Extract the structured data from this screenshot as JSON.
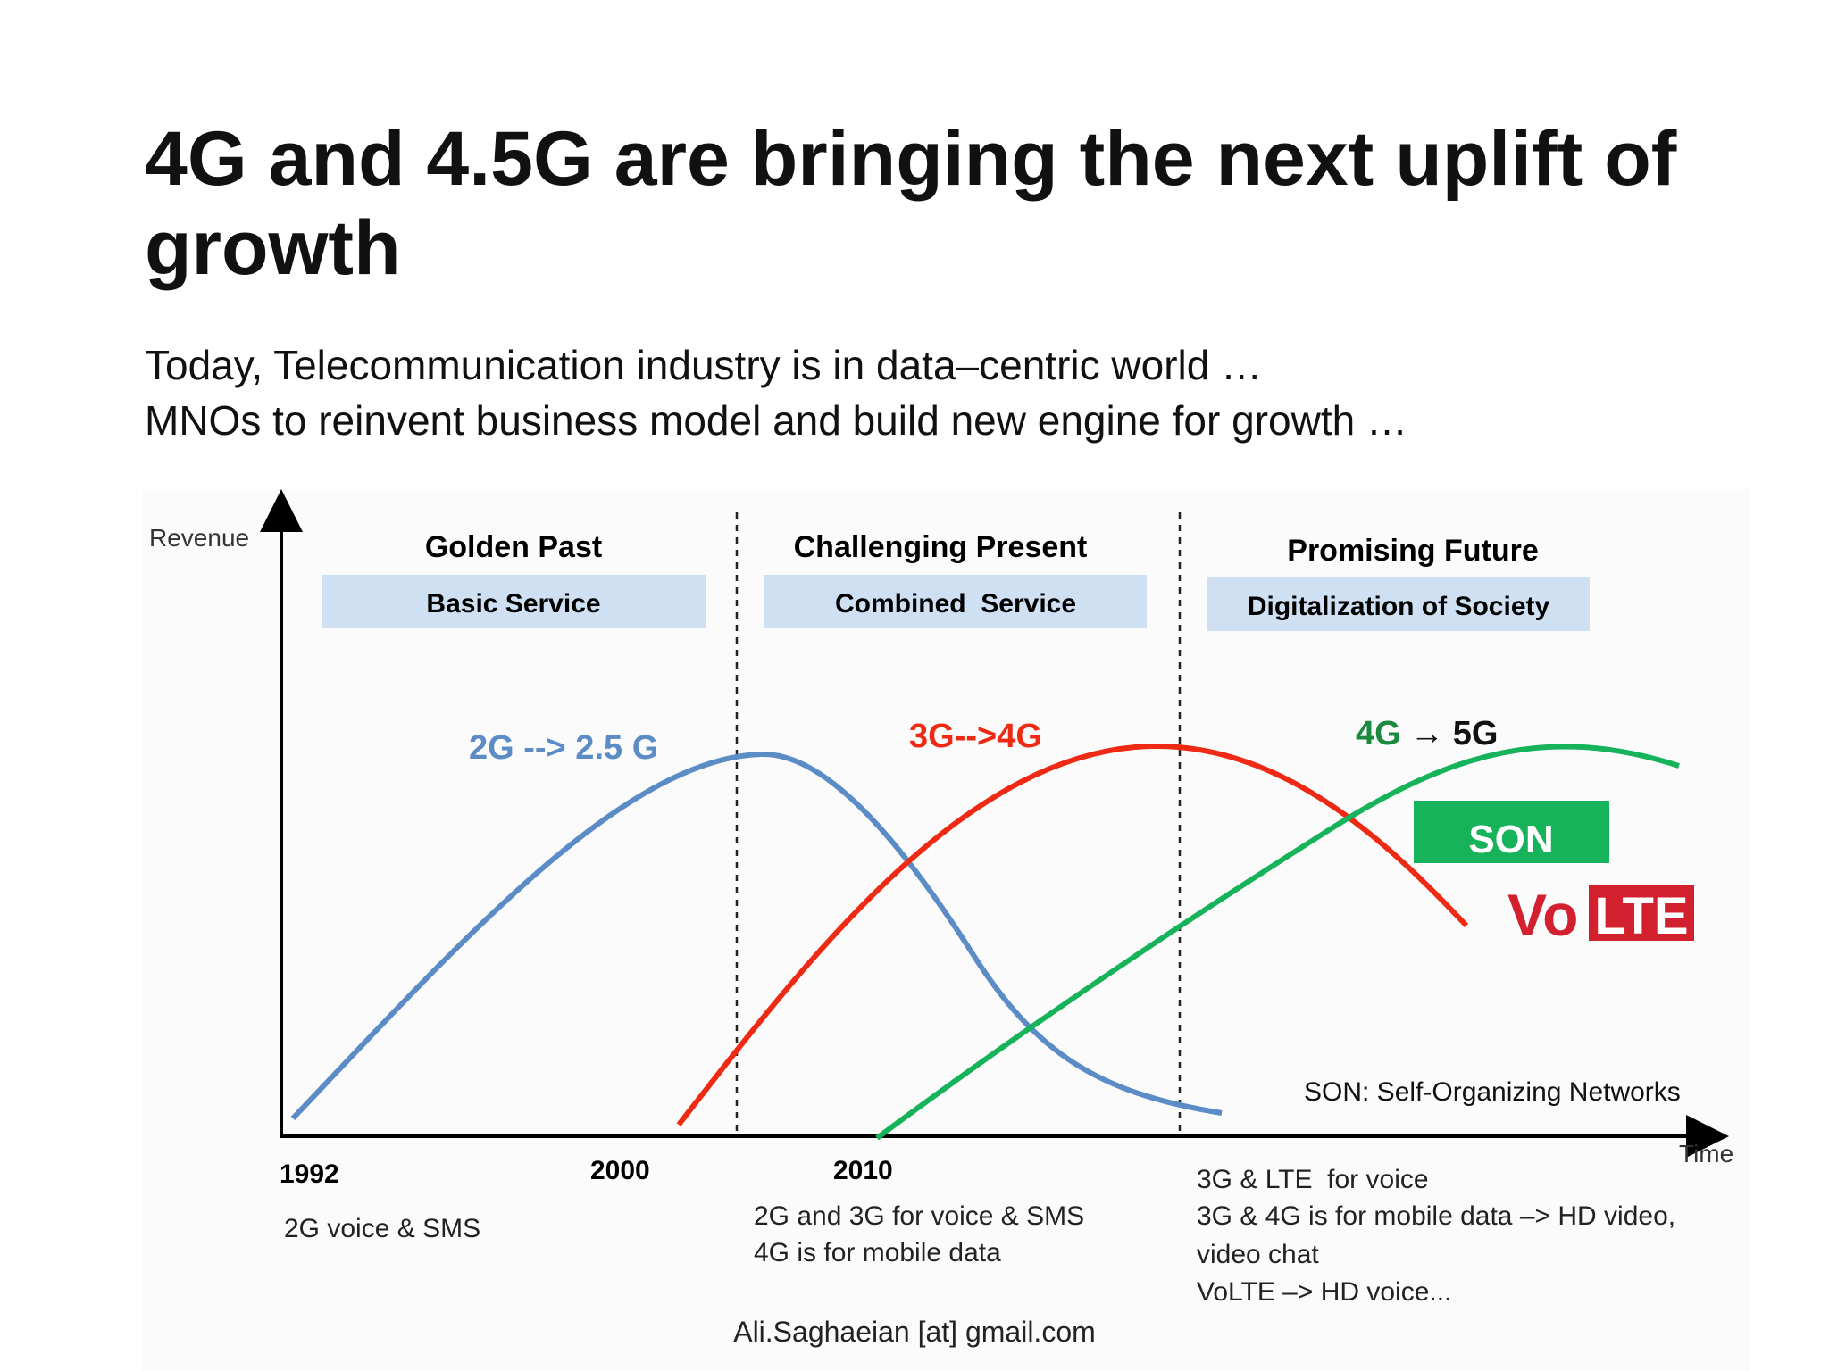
{
  "slide": {
    "title": "4G and 4.5G are bringing the next uplift of growth",
    "subtitle_lines": [
      "Today, Telecommunication industry is in data–centric world …",
      "MNOs to reinvent business model and build new engine for growth …"
    ],
    "footer": "Ali.Saghaeian [at] gmail.com"
  },
  "diagram": {
    "axis": {
      "y_label": "Revenue",
      "x_label": "Time"
    },
    "eras": [
      {
        "title": "Golden Past",
        "band": "Basic Service"
      },
      {
        "title": "Challenging Present",
        "band": "Combined  Service"
      },
      {
        "title": "Promising Future",
        "band": "Digitalization of Society"
      }
    ],
    "curves": [
      {
        "label": "2G --> 2.5 G",
        "color": "#5b8cc6"
      },
      {
        "label": "3G-->4G",
        "color": "#ee2a14"
      },
      {
        "label_a": "4G",
        "arrow": "→",
        "label_b": "5G",
        "color": "#16b35a",
        "label_color": "#1b8a3f"
      }
    ],
    "son": {
      "label": "SON",
      "color": "#16b35a",
      "note": "SON: Self-Organizing Networks"
    },
    "volte": {
      "vo": "Vo",
      "lte": "LTE",
      "color": "#d3202e"
    },
    "years": [
      "1992",
      "2000",
      "2010"
    ],
    "notes": {
      "golden": [
        "2G voice & SMS"
      ],
      "present": [
        "2G and 3G for voice & SMS",
        "4G is for mobile data"
      ],
      "future": [
        "3G & LTE  for voice",
        "3G & 4G is for mobile data –> HD video,",
        "video chat",
        "VoLTE –> HD voice..."
      ]
    },
    "colors": {
      "band_fill": "#cfe0f3",
      "axis": "#000000"
    }
  }
}
